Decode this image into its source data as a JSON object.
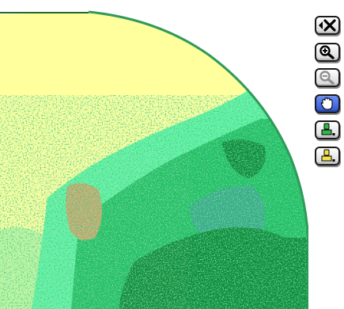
{
  "map": {
    "colors": {
      "background": "#ffffff",
      "desert": "#ffff9e",
      "pale_green": "#bff5a0",
      "light_green": "#5ef2a2",
      "medium_green": "#22bf63",
      "dark_green": "#0f8c3a",
      "sea_green": "#3aab88",
      "tan": "#c2a96b",
      "edge_line": "#1f6b2e",
      "rim": "#2f9a5a"
    }
  },
  "toolbar": {
    "tools": [
      {
        "name": "reset-view",
        "icon": "back-x-icon",
        "active": false
      },
      {
        "name": "zoom-in",
        "icon": "zoom-in-icon",
        "active": false
      },
      {
        "name": "zoom-out",
        "icon": "zoom-out-icon",
        "active": false
      },
      {
        "name": "pan",
        "icon": "hand-icon",
        "active": true
      },
      {
        "name": "green-brush",
        "icon": "green-brush-icon",
        "active": false
      },
      {
        "name": "yellow-brush",
        "icon": "yellow-brush-icon",
        "active": false
      }
    ],
    "colors": {
      "active": "#3f63e0",
      "green_brush": "#2fb84a",
      "yellow_brush": "#f2e24a"
    }
  }
}
